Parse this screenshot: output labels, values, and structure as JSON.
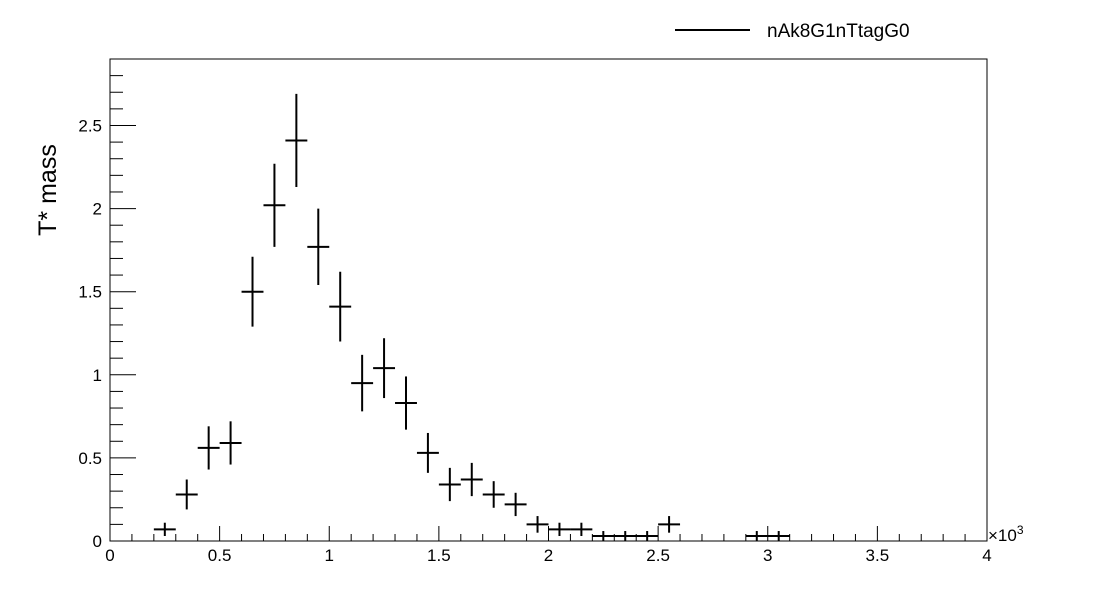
{
  "chart_data": {
    "type": "scatter",
    "style": "histogram-errorbars",
    "title": "",
    "xlabel": "",
    "ylabel": "T* mass",
    "x_multiplier_label": "×10",
    "x_multiplier_exp": "3",
    "xlim": [
      0,
      4
    ],
    "ylim": [
      0,
      2.9
    ],
    "bin_width": 0.1,
    "x_ticks": [
      0,
      0.5,
      1,
      1.5,
      2,
      2.5,
      3,
      3.5,
      4
    ],
    "x_tick_labels": [
      "0",
      "0.5",
      "1",
      "1.5",
      "2",
      "2.5",
      "3",
      "3.5",
      "4"
    ],
    "y_ticks": [
      0,
      0.5,
      1,
      1.5,
      2,
      2.5
    ],
    "y_tick_labels": [
      "0",
      "0.5",
      "1",
      "1.5",
      "2",
      "2.5"
    ],
    "legend": {
      "label": "nAk8G1nTtagG0",
      "position": "top-right",
      "marker": "line"
    },
    "grid": false,
    "color": "#000000",
    "series": [
      {
        "name": "nAk8G1nTtagG0",
        "points": [
          {
            "x": 0.25,
            "y": 0.07,
            "err": 0.04
          },
          {
            "x": 0.35,
            "y": 0.28,
            "err": 0.09
          },
          {
            "x": 0.45,
            "y": 0.56,
            "err": 0.13
          },
          {
            "x": 0.55,
            "y": 0.59,
            "err": 0.13
          },
          {
            "x": 0.65,
            "y": 1.5,
            "err": 0.21
          },
          {
            "x": 0.75,
            "y": 2.02,
            "err": 0.25
          },
          {
            "x": 0.85,
            "y": 2.41,
            "err": 0.28
          },
          {
            "x": 0.95,
            "y": 1.77,
            "err": 0.23
          },
          {
            "x": 1.05,
            "y": 1.41,
            "err": 0.21
          },
          {
            "x": 1.15,
            "y": 0.95,
            "err": 0.17
          },
          {
            "x": 1.25,
            "y": 1.04,
            "err": 0.18
          },
          {
            "x": 1.35,
            "y": 0.83,
            "err": 0.16
          },
          {
            "x": 1.45,
            "y": 0.53,
            "err": 0.12
          },
          {
            "x": 1.55,
            "y": 0.34,
            "err": 0.1
          },
          {
            "x": 1.65,
            "y": 0.37,
            "err": 0.1
          },
          {
            "x": 1.75,
            "y": 0.28,
            "err": 0.08
          },
          {
            "x": 1.85,
            "y": 0.22,
            "err": 0.07
          },
          {
            "x": 1.95,
            "y": 0.1,
            "err": 0.05
          },
          {
            "x": 2.05,
            "y": 0.07,
            "err": 0.04
          },
          {
            "x": 2.15,
            "y": 0.07,
            "err": 0.04
          },
          {
            "x": 2.25,
            "y": 0.03,
            "err": 0.03
          },
          {
            "x": 2.35,
            "y": 0.03,
            "err": 0.03
          },
          {
            "x": 2.45,
            "y": 0.03,
            "err": 0.03
          },
          {
            "x": 2.55,
            "y": 0.1,
            "err": 0.05
          },
          {
            "x": 2.95,
            "y": 0.03,
            "err": 0.03
          },
          {
            "x": 3.05,
            "y": 0.03,
            "err": 0.03
          }
        ]
      }
    ]
  }
}
